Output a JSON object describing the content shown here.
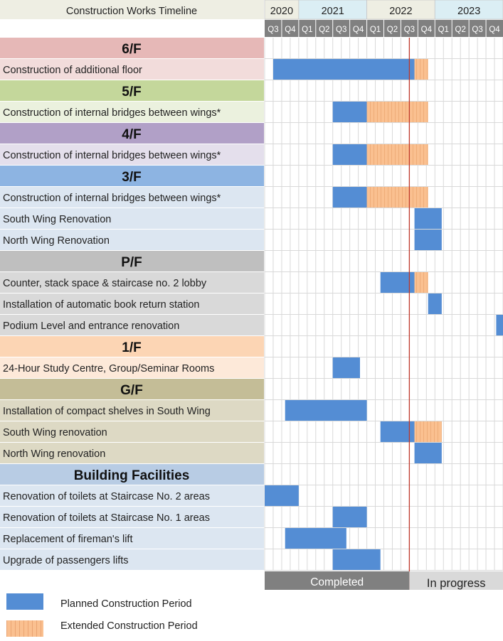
{
  "chart_data": {
    "type": "gantt",
    "title": "Construction Works Timeline",
    "years": [
      {
        "label": "2020",
        "quarters": 2,
        "color": "#eeeee3"
      },
      {
        "label": "2021",
        "quarters": 4,
        "color": "#dbeef4"
      },
      {
        "label": "2022",
        "quarters": 4,
        "color": "#eeeee3"
      },
      {
        "label": "2023",
        "quarters": 4,
        "color": "#dbeef4"
      }
    ],
    "quarters": [
      "Q3",
      "Q4",
      "Q1",
      "Q2",
      "Q3",
      "Q4",
      "Q1",
      "Q2",
      "Q3",
      "Q4",
      "Q1",
      "Q2",
      "Q3",
      "Q4"
    ],
    "current_marker_quarter": 8.5,
    "rows": [
      {
        "type": "header",
        "label": "6/F",
        "color": "#e6b8b7"
      },
      {
        "type": "task",
        "label": "Construction of additional floor",
        "color": "#f2dcdb",
        "planned": [
          0.125,
          2.2
        ],
        "extended": [
          2.2,
          2.4
        ]
      },
      {
        "type": "header",
        "label": "5/F",
        "color": "#c4d79b"
      },
      {
        "type": "task",
        "label": "Construction of internal bridges between wings*",
        "color": "#ebf1de",
        "planned": [
          1,
          1.5
        ],
        "extended": [
          1.5,
          2.4
        ]
      },
      {
        "type": "header",
        "label": "4/F",
        "color": "#b1a0c7"
      },
      {
        "type": "task",
        "label": "Construction of internal bridges between wings*",
        "color": "#e4dfec",
        "planned": [
          1,
          1.5
        ],
        "extended": [
          1.5,
          2.4
        ]
      },
      {
        "type": "header",
        "label": "3/F",
        "color": "#8db4e2"
      },
      {
        "type": "task",
        "label": "Construction of internal bridges between wings*",
        "color": "#dce6f1",
        "planned": [
          1,
          1.5
        ],
        "extended": [
          1.5,
          2.4
        ]
      },
      {
        "type": "task",
        "label": "South Wing Renovation",
        "color": "#dce6f1",
        "planned": [
          2.2,
          2.6
        ],
        "extended": null
      },
      {
        "type": "task",
        "label": "North Wing Renovation",
        "color": "#dce6f1",
        "planned": [
          2.2,
          2.6
        ],
        "extended": null
      },
      {
        "type": "header",
        "label": "P/F",
        "color": "#bfbfbf"
      },
      {
        "type": "task",
        "label": "Counter, stack space & staircase no. 2 lobby",
        "color": "#d9d9d9",
        "planned": [
          1.7,
          2.2
        ],
        "extended": [
          2.2,
          2.4
        ]
      },
      {
        "type": "task",
        "label": "Installation of automatic book return station",
        "color": "#d9d9d9",
        "planned": [
          2.4,
          2.6
        ],
        "extended": null
      },
      {
        "type": "task",
        "label": "Podium Level and entrance renovation",
        "color": "#d9d9d9",
        "planned": [
          3.4,
          4.0
        ],
        "extended": null
      },
      {
        "type": "header",
        "label": "1/F",
        "color": "#fcd5b4"
      },
      {
        "type": "task",
        "label": "24-Hour Study Centre, Group/Seminar Rooms",
        "color": "#fde9d9",
        "planned": [
          1,
          1.4
        ],
        "extended": null
      },
      {
        "type": "header",
        "label": "G/F",
        "color": "#c4bd97"
      },
      {
        "type": "task",
        "label": "Installation of compact shelves in South Wing",
        "color": "#ddd9c4",
        "planned": [
          0.3,
          1.5
        ],
        "extended": null
      },
      {
        "type": "task",
        "label": "South Wing renovation",
        "color": "#ddd9c4",
        "planned": [
          1.7,
          2.2
        ],
        "extended": [
          2.2,
          2.6
        ]
      },
      {
        "type": "task",
        "label": "North Wing renovation",
        "color": "#ddd9c4",
        "planned": [
          2.2,
          2.6
        ],
        "extended": null
      },
      {
        "type": "header",
        "label": "Building Facilities",
        "color": "#b8cce4"
      },
      {
        "type": "task",
        "label": "Renovation of toilets at Staircase No. 2 areas",
        "color": "#dce6f1",
        "planned": [
          0,
          0.5
        ],
        "extended": null
      },
      {
        "type": "task",
        "label": "Renovation of toilets at Staircase No. 1 areas",
        "color": "#dce6f1",
        "planned": [
          1,
          1.5
        ],
        "extended": null
      },
      {
        "type": "task",
        "label": "Replacement of fireman's lift",
        "color": "#dce6f1",
        "planned": [
          0.3,
          1.2
        ],
        "extended": null
      },
      {
        "type": "task",
        "label": "Upgrade of passengers lifts",
        "color": "#dce6f1",
        "planned": [
          1,
          1.7
        ],
        "extended": null
      }
    ],
    "status": {
      "completed": "Completed",
      "in_progress": "In progress"
    },
    "legend": {
      "planned": "Planned Construction Period",
      "extended": "Extended Construction Period"
    },
    "colors": {
      "planned": "#548dd4",
      "extended": "#fac090",
      "marker": "#c0392b",
      "quarter_header": "#808080",
      "completed_bar": "#808080",
      "in_progress_bar": "#d9d9d9"
    }
  },
  "legend": {
    "planned": "Planned Construction Period",
    "extended": "Extended Construction Period"
  }
}
